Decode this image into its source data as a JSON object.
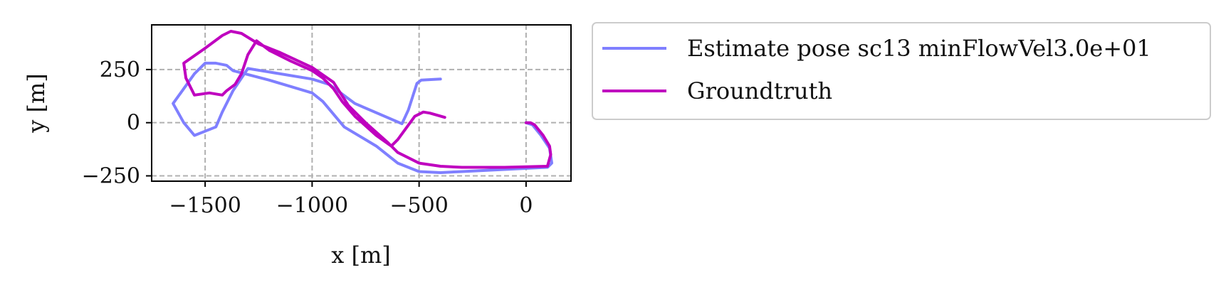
{
  "chart_data": {
    "type": "line",
    "xlabel": "x [m]",
    "ylabel": "y [m]",
    "xlim": [
      -1750,
      210
    ],
    "ylim": [
      -275,
      460
    ],
    "xticks": [
      -1500,
      -1000,
      -500,
      0
    ],
    "xtick_labels": [
      "−1500",
      "−1000",
      "−500",
      "0"
    ],
    "yticks": [
      -250,
      0,
      250
    ],
    "ytick_labels": [
      "−250",
      "0",
      "250"
    ],
    "grid": true,
    "legend_position": "outside-right",
    "series": [
      {
        "name": "Estimate pose sc13 minFlowVel3.0e+01",
        "color": "#7f7fff",
        "points": [
          [
            -400,
            205
          ],
          [
            -490,
            200
          ],
          [
            -510,
            185
          ],
          [
            -550,
            60
          ],
          [
            -580,
            -5
          ],
          [
            -800,
            90
          ],
          [
            -920,
            180
          ],
          [
            -1000,
            205
          ],
          [
            -1300,
            255
          ],
          [
            -1370,
            150
          ],
          [
            -1420,
            50
          ],
          [
            -1450,
            -20
          ],
          [
            -1500,
            -40
          ],
          [
            -1550,
            -60
          ],
          [
            -1600,
            0
          ],
          [
            -1650,
            90
          ],
          [
            -1600,
            160
          ],
          [
            -1550,
            230
          ],
          [
            -1500,
            280
          ],
          [
            -1450,
            280
          ],
          [
            -1400,
            270
          ],
          [
            -1370,
            245
          ],
          [
            -1200,
            200
          ],
          [
            -1000,
            140
          ],
          [
            -950,
            100
          ],
          [
            -900,
            40
          ],
          [
            -850,
            -20
          ],
          [
            -700,
            -110
          ],
          [
            -600,
            -190
          ],
          [
            -500,
            -230
          ],
          [
            -400,
            -235
          ],
          [
            -300,
            -230
          ],
          [
            -100,
            -220
          ],
          [
            100,
            -210
          ],
          [
            120,
            -190
          ],
          [
            110,
            -120
          ],
          [
            70,
            -60
          ],
          [
            30,
            -10
          ],
          [
            0,
            0
          ]
        ]
      },
      {
        "name": "Groundtruth",
        "color": "#bf00bf",
        "points": [
          [
            -380,
            25
          ],
          [
            -450,
            45
          ],
          [
            -480,
            50
          ],
          [
            -520,
            30
          ],
          [
            -600,
            -80
          ],
          [
            -630,
            -110
          ],
          [
            -700,
            -60
          ],
          [
            -800,
            30
          ],
          [
            -860,
            100
          ],
          [
            -900,
            160
          ],
          [
            -950,
            210
          ],
          [
            -1000,
            245
          ],
          [
            -1100,
            290
          ],
          [
            -1200,
            340
          ],
          [
            -1260,
            385
          ],
          [
            -1300,
            320
          ],
          [
            -1330,
            230
          ],
          [
            -1360,
            180
          ],
          [
            -1400,
            150
          ],
          [
            -1420,
            130
          ],
          [
            -1480,
            140
          ],
          [
            -1550,
            130
          ],
          [
            -1590,
            210
          ],
          [
            -1600,
            280
          ],
          [
            -1500,
            350
          ],
          [
            -1420,
            410
          ],
          [
            -1380,
            430
          ],
          [
            -1330,
            420
          ],
          [
            -1250,
            370
          ],
          [
            -1150,
            330
          ],
          [
            -1000,
            260
          ],
          [
            -900,
            190
          ],
          [
            -830,
            80
          ],
          [
            -750,
            0
          ],
          [
            -650,
            -90
          ],
          [
            -600,
            -140
          ],
          [
            -500,
            -190
          ],
          [
            -400,
            -205
          ],
          [
            -300,
            -210
          ],
          [
            -100,
            -210
          ],
          [
            100,
            -205
          ],
          [
            115,
            -150
          ],
          [
            110,
            -110
          ],
          [
            80,
            -60
          ],
          [
            40,
            -10
          ],
          [
            20,
            0
          ],
          [
            0,
            0
          ]
        ]
      }
    ]
  }
}
